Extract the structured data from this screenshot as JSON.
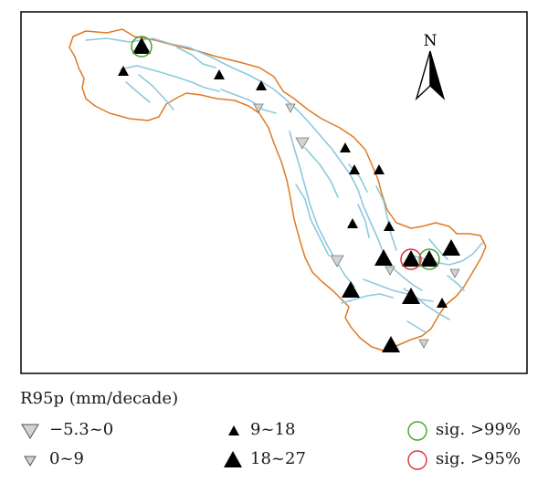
{
  "map": {
    "north_label": "N",
    "colors": {
      "boundary": "#e07a22",
      "river": "#8ec9de",
      "frame": "#000000",
      "tri_dark": "#000000",
      "tri_light_fill": "#d2d2d2",
      "tri_light_stroke": "#7a7a7a",
      "sig99": "#4aa02c",
      "sig95": "#e0303a"
    },
    "stations": [
      {
        "class": "18~27",
        "sig": ">99%"
      },
      {
        "class": "9~18"
      },
      {
        "class": "9~18"
      },
      {
        "class": "9~18"
      },
      {
        "class": "0~9"
      },
      {
        "class": "0~9"
      },
      {
        "class": "-5.3~0"
      },
      {
        "class": "9~18"
      },
      {
        "class": "9~18"
      },
      {
        "class": "9~18"
      },
      {
        "class": "9~18"
      },
      {
        "class": "9~18"
      },
      {
        "class": "18~27"
      },
      {
        "class": "18~27",
        "sig": ">95%"
      },
      {
        "class": "18~27",
        "sig": ">99%"
      },
      {
        "class": "18~27"
      },
      {
        "class": "0~9"
      },
      {
        "class": "0~9"
      },
      {
        "class": "-5.3~0"
      },
      {
        "class": "18~27"
      },
      {
        "class": "18~27"
      },
      {
        "class": "9~18"
      },
      {
        "class": "18~27"
      },
      {
        "class": "0~9"
      }
    ]
  },
  "legend": {
    "title": "R95p (mm/decade)",
    "items": [
      {
        "symbol": "triangle-down-large-gray",
        "label": "−5.3~0"
      },
      {
        "symbol": "triangle-down-small-gray",
        "label": "0~9"
      },
      {
        "symbol": "triangle-up-small-black",
        "label": "9~18"
      },
      {
        "symbol": "triangle-up-large-black",
        "label": "18~27"
      },
      {
        "symbol": "circle-green",
        "label": "sig. >99%"
      },
      {
        "symbol": "circle-red",
        "label": "sig. >95%"
      }
    ]
  }
}
